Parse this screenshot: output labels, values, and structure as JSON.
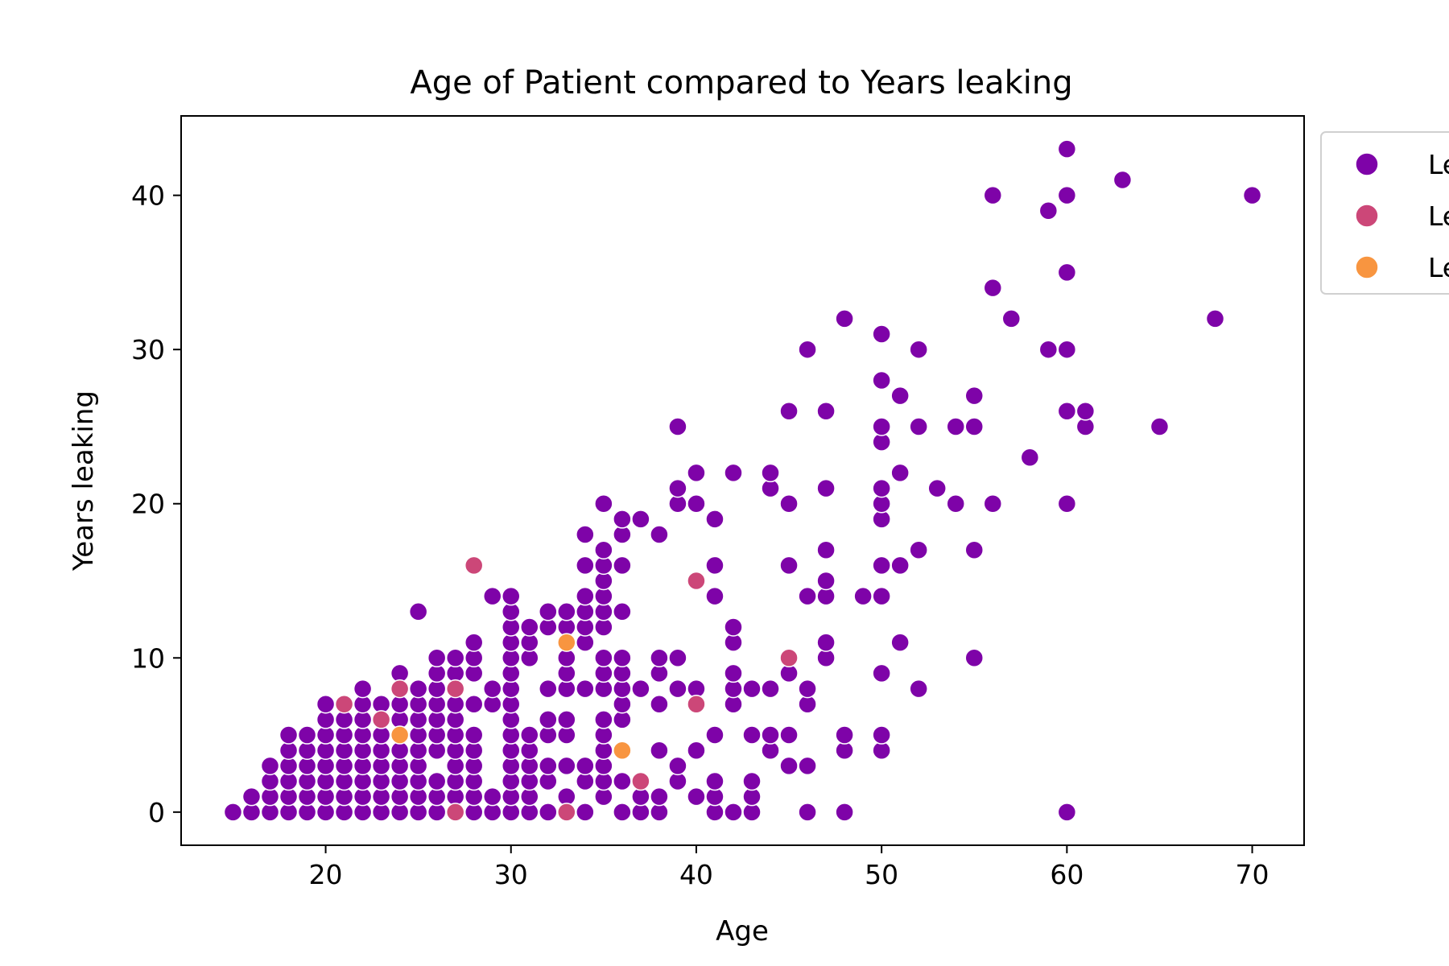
{
  "chart_data": {
    "type": "scatter",
    "title": "Age of Patient compared to Years leaking",
    "xlabel": "Age",
    "ylabel": "Years leaking",
    "xlim": [
      12.2,
      72.8
    ],
    "ylim": [
      -2.15,
      45.15
    ],
    "xticks": [
      20,
      30,
      40,
      50,
      60,
      70
    ],
    "yticks": [
      0,
      10,
      20,
      30,
      40
    ],
    "grid": false,
    "legend": {
      "placement": "outside-top-right",
      "entries_visible_text": [
        "Le",
        "Le",
        "Le"
      ]
    },
    "series": [
      {
        "color": "#7e03a8",
        "points": [
          [
            15,
            0
          ],
          [
            16,
            0
          ],
          [
            16,
            1
          ],
          [
            17,
            0
          ],
          [
            17,
            1
          ],
          [
            17,
            2
          ],
          [
            17,
            3
          ],
          [
            18,
            0
          ],
          [
            18,
            1
          ],
          [
            18,
            2
          ],
          [
            18,
            3
          ],
          [
            18,
            4
          ],
          [
            18,
            5
          ],
          [
            19,
            0
          ],
          [
            19,
            1
          ],
          [
            19,
            2
          ],
          [
            19,
            3
          ],
          [
            19,
            4
          ],
          [
            19,
            5
          ],
          [
            20,
            0
          ],
          [
            20,
            1
          ],
          [
            20,
            2
          ],
          [
            20,
            3
          ],
          [
            20,
            4
          ],
          [
            20,
            5
          ],
          [
            20,
            6
          ],
          [
            20,
            7
          ],
          [
            21,
            0
          ],
          [
            21,
            1
          ],
          [
            21,
            2
          ],
          [
            21,
            3
          ],
          [
            21,
            4
          ],
          [
            21,
            5
          ],
          [
            21,
            6
          ],
          [
            22,
            0
          ],
          [
            22,
            1
          ],
          [
            22,
            2
          ],
          [
            22,
            3
          ],
          [
            22,
            4
          ],
          [
            22,
            5
          ],
          [
            22,
            6
          ],
          [
            22,
            7
          ],
          [
            22,
            8
          ],
          [
            23,
            0
          ],
          [
            23,
            1
          ],
          [
            23,
            2
          ],
          [
            23,
            3
          ],
          [
            23,
            4
          ],
          [
            23,
            5
          ],
          [
            23,
            7
          ],
          [
            24,
            0
          ],
          [
            24,
            1
          ],
          [
            24,
            2
          ],
          [
            24,
            3
          ],
          [
            24,
            4
          ],
          [
            24,
            6
          ],
          [
            24,
            7
          ],
          [
            24,
            9
          ],
          [
            25,
            0
          ],
          [
            25,
            1
          ],
          [
            25,
            2
          ],
          [
            25,
            3
          ],
          [
            25,
            4
          ],
          [
            25,
            5
          ],
          [
            25,
            6
          ],
          [
            25,
            7
          ],
          [
            25,
            8
          ],
          [
            25,
            13
          ],
          [
            26,
            0
          ],
          [
            26,
            1
          ],
          [
            26,
            2
          ],
          [
            26,
            4
          ],
          [
            26,
            5
          ],
          [
            26,
            6
          ],
          [
            26,
            7
          ],
          [
            26,
            8
          ],
          [
            26,
            9
          ],
          [
            26,
            10
          ],
          [
            27,
            1
          ],
          [
            27,
            2
          ],
          [
            27,
            3
          ],
          [
            27,
            4
          ],
          [
            27,
            5
          ],
          [
            27,
            6
          ],
          [
            27,
            7
          ],
          [
            27,
            9
          ],
          [
            27,
            10
          ],
          [
            28,
            0
          ],
          [
            28,
            1
          ],
          [
            28,
            2
          ],
          [
            28,
            3
          ],
          [
            28,
            4
          ],
          [
            28,
            5
          ],
          [
            28,
            7
          ],
          [
            28,
            9
          ],
          [
            28,
            10
          ],
          [
            28,
            11
          ],
          [
            29,
            0
          ],
          [
            29,
            1
          ],
          [
            29,
            7
          ],
          [
            29,
            8
          ],
          [
            29,
            14
          ],
          [
            30,
            0
          ],
          [
            30,
            1
          ],
          [
            30,
            2
          ],
          [
            30,
            3
          ],
          [
            30,
            4
          ],
          [
            30,
            5
          ],
          [
            30,
            6
          ],
          [
            30,
            7
          ],
          [
            30,
            8
          ],
          [
            30,
            9
          ],
          [
            30,
            10
          ],
          [
            30,
            11
          ],
          [
            30,
            12
          ],
          [
            30,
            13
          ],
          [
            30,
            14
          ],
          [
            31,
            0
          ],
          [
            31,
            1
          ],
          [
            31,
            2
          ],
          [
            31,
            3
          ],
          [
            31,
            4
          ],
          [
            31,
            5
          ],
          [
            31,
            10
          ],
          [
            31,
            11
          ],
          [
            31,
            12
          ],
          [
            32,
            0
          ],
          [
            32,
            2
          ],
          [
            32,
            3
          ],
          [
            32,
            5
          ],
          [
            32,
            6
          ],
          [
            32,
            8
          ],
          [
            32,
            12
          ],
          [
            32,
            13
          ],
          [
            33,
            1
          ],
          [
            33,
            3
          ],
          [
            33,
            5
          ],
          [
            33,
            6
          ],
          [
            33,
            8
          ],
          [
            33,
            9
          ],
          [
            33,
            10
          ],
          [
            33,
            12
          ],
          [
            33,
            13
          ],
          [
            34,
            0
          ],
          [
            34,
            2
          ],
          [
            34,
            3
          ],
          [
            34,
            8
          ],
          [
            34,
            11
          ],
          [
            34,
            12
          ],
          [
            34,
            13
          ],
          [
            34,
            14
          ],
          [
            34,
            16
          ],
          [
            34,
            18
          ],
          [
            35,
            1
          ],
          [
            35,
            2
          ],
          [
            35,
            3
          ],
          [
            35,
            4
          ],
          [
            35,
            5
          ],
          [
            35,
            6
          ],
          [
            35,
            8
          ],
          [
            35,
            9
          ],
          [
            35,
            10
          ],
          [
            35,
            12
          ],
          [
            35,
            13
          ],
          [
            35,
            14
          ],
          [
            35,
            15
          ],
          [
            35,
            16
          ],
          [
            35,
            17
          ],
          [
            35,
            20
          ],
          [
            36,
            0
          ],
          [
            36,
            2
          ],
          [
            36,
            6
          ],
          [
            36,
            7
          ],
          [
            36,
            8
          ],
          [
            36,
            9
          ],
          [
            36,
            10
          ],
          [
            36,
            13
          ],
          [
            36,
            16
          ],
          [
            36,
            18
          ],
          [
            36,
            19
          ],
          [
            37,
            0
          ],
          [
            37,
            1
          ],
          [
            37,
            8
          ],
          [
            37,
            19
          ],
          [
            38,
            0
          ],
          [
            38,
            1
          ],
          [
            38,
            4
          ],
          [
            38,
            7
          ],
          [
            38,
            9
          ],
          [
            38,
            10
          ],
          [
            38,
            18
          ],
          [
            39,
            2
          ],
          [
            39,
            3
          ],
          [
            39,
            8
          ],
          [
            39,
            10
          ],
          [
            39,
            20
          ],
          [
            39,
            21
          ],
          [
            39,
            25
          ],
          [
            40,
            1
          ],
          [
            40,
            4
          ],
          [
            40,
            8
          ],
          [
            40,
            20
          ],
          [
            40,
            22
          ],
          [
            41,
            0
          ],
          [
            41,
            1
          ],
          [
            41,
            2
          ],
          [
            41,
            5
          ],
          [
            41,
            14
          ],
          [
            41,
            16
          ],
          [
            41,
            19
          ],
          [
            42,
            0
          ],
          [
            42,
            7
          ],
          [
            42,
            8
          ],
          [
            42,
            9
          ],
          [
            42,
            11
          ],
          [
            42,
            12
          ],
          [
            42,
            22
          ],
          [
            43,
            0
          ],
          [
            43,
            1
          ],
          [
            43,
            2
          ],
          [
            43,
            5
          ],
          [
            43,
            8
          ],
          [
            44,
            4
          ],
          [
            44,
            5
          ],
          [
            44,
            8
          ],
          [
            44,
            21
          ],
          [
            44,
            22
          ],
          [
            45,
            3
          ],
          [
            45,
            5
          ],
          [
            45,
            9
          ],
          [
            45,
            16
          ],
          [
            45,
            20
          ],
          [
            45,
            26
          ],
          [
            46,
            0
          ],
          [
            46,
            3
          ],
          [
            46,
            7
          ],
          [
            46,
            8
          ],
          [
            46,
            14
          ],
          [
            46,
            30
          ],
          [
            47,
            10
          ],
          [
            47,
            11
          ],
          [
            47,
            14
          ],
          [
            47,
            15
          ],
          [
            47,
            17
          ],
          [
            47,
            21
          ],
          [
            47,
            26
          ],
          [
            48,
            0
          ],
          [
            48,
            4
          ],
          [
            48,
            5
          ],
          [
            48,
            32
          ],
          [
            49,
            14
          ],
          [
            50,
            4
          ],
          [
            50,
            5
          ],
          [
            50,
            9
          ],
          [
            50,
            14
          ],
          [
            50,
            16
          ],
          [
            50,
            19
          ],
          [
            50,
            20
          ],
          [
            50,
            21
          ],
          [
            50,
            24
          ],
          [
            50,
            25
          ],
          [
            50,
            28
          ],
          [
            50,
            31
          ],
          [
            51,
            11
          ],
          [
            51,
            16
          ],
          [
            51,
            22
          ],
          [
            51,
            27
          ],
          [
            52,
            8
          ],
          [
            52,
            17
          ],
          [
            52,
            25
          ],
          [
            52,
            30
          ],
          [
            53,
            21
          ],
          [
            54,
            20
          ],
          [
            54,
            25
          ],
          [
            55,
            10
          ],
          [
            55,
            17
          ],
          [
            55,
            25
          ],
          [
            55,
            27
          ],
          [
            56,
            20
          ],
          [
            56,
            34
          ],
          [
            56,
            40
          ],
          [
            57,
            32
          ],
          [
            58,
            23
          ],
          [
            59,
            30
          ],
          [
            59,
            39
          ],
          [
            60,
            0
          ],
          [
            60,
            20
          ],
          [
            60,
            26
          ],
          [
            60,
            30
          ],
          [
            60,
            35
          ],
          [
            60,
            40
          ],
          [
            60,
            43
          ],
          [
            61,
            25
          ],
          [
            61,
            26
          ],
          [
            63,
            41
          ],
          [
            65,
            25
          ],
          [
            68,
            32
          ],
          [
            70,
            40
          ]
        ]
      },
      {
        "color": "#cc4778",
        "points": [
          [
            21,
            7
          ],
          [
            23,
            6
          ],
          [
            24,
            8
          ],
          [
            27,
            0
          ],
          [
            27,
            8
          ],
          [
            28,
            16
          ],
          [
            33,
            0
          ],
          [
            37,
            2
          ],
          [
            40,
            7
          ],
          [
            40,
            15
          ],
          [
            45,
            10
          ]
        ]
      },
      {
        "color": "#f89540",
        "points": [
          [
            24,
            5
          ],
          [
            33,
            11
          ],
          [
            36,
            4
          ]
        ]
      }
    ]
  }
}
